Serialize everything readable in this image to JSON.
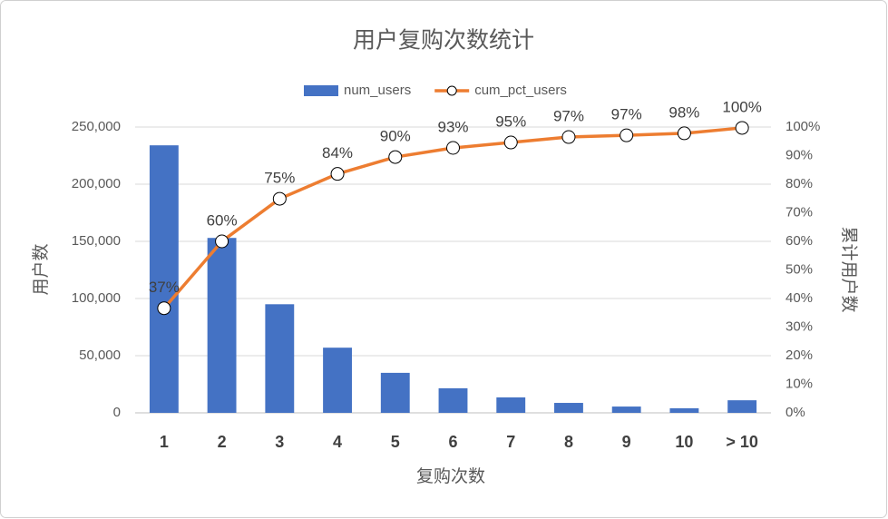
{
  "chart_data": {
    "type": "bar",
    "title": "用户复购次数统计",
    "x_label": "复购次数",
    "y_label": "用户数",
    "y2_label": "累计用户数",
    "categories": [
      "1",
      "2",
      "3",
      "4",
      "5",
      "6",
      "7",
      "8",
      "9",
      "10",
      "> 10"
    ],
    "series": [
      {
        "name": "num_users",
        "type": "bar",
        "color": "#4472c4",
        "axis": "y",
        "values": [
          234000,
          153000,
          95000,
          57000,
          35000,
          21500,
          13500,
          8700,
          5500,
          4000,
          11000
        ]
      },
      {
        "name": "cum_pct_users",
        "type": "line",
        "color": "#ed7d31",
        "axis": "y2",
        "values": [
          36.6,
          60,
          74.9,
          83.6,
          89.5,
          92.7,
          94.6,
          96.5,
          97.1,
          97.8,
          99.7
        ],
        "value_labels": [
          "37%",
          "60%",
          "75%",
          "84%",
          "90%",
          "93%",
          "95%",
          "97%",
          "97%",
          "98%",
          "100%"
        ]
      }
    ],
    "ylim": [
      0,
      250000
    ],
    "yticks": [
      0,
      {
        "value": 50000,
        "label": "50,000"
      },
      {
        "value": 100000,
        "label": "100,000"
      },
      {
        "value": 150000,
        "label": "150,000"
      },
      {
        "value": 200000,
        "label": "200,000"
      },
      {
        "value": 250000,
        "label": "250,000"
      }
    ],
    "y2lim": [
      0,
      100
    ],
    "y2ticks": [
      {
        "value": 0,
        "label": "0%"
      },
      {
        "value": 10,
        "label": "10%"
      },
      {
        "value": 20,
        "label": "20%"
      },
      {
        "value": 30,
        "label": "30%"
      },
      {
        "value": 40,
        "label": "40%"
      },
      {
        "value": 50,
        "label": "50%"
      },
      {
        "value": 60,
        "label": "60%"
      },
      {
        "value": 70,
        "label": "70%"
      },
      {
        "value": 80,
        "label": "80%"
      },
      {
        "value": 90,
        "label": "90%"
      },
      {
        "value": 100,
        "label": "100%"
      }
    ],
    "grid": true,
    "legend": "top"
  }
}
